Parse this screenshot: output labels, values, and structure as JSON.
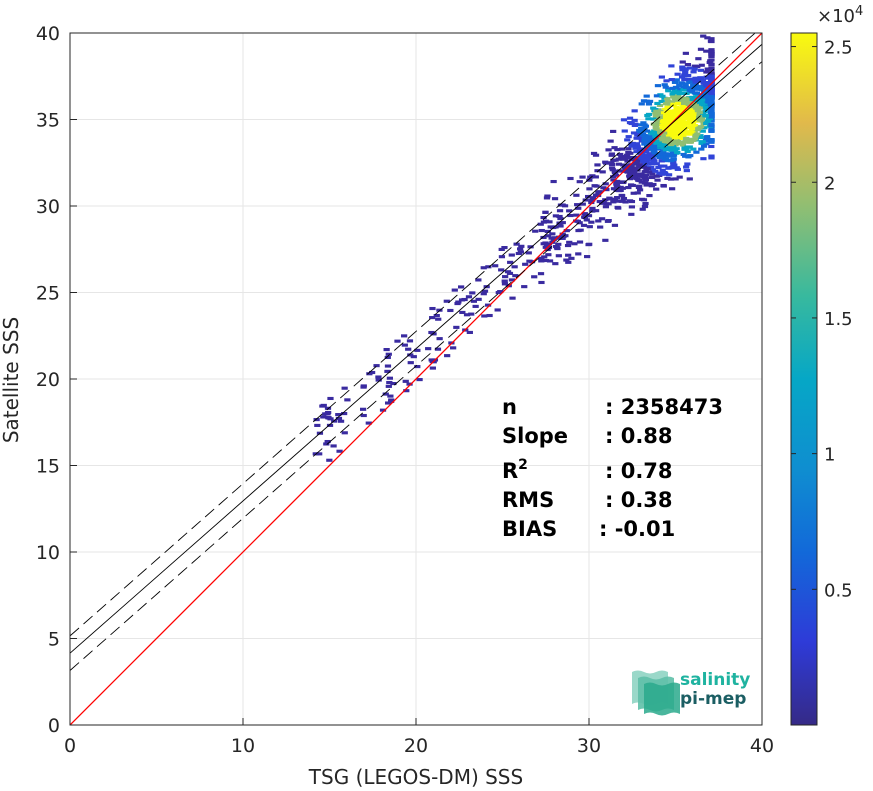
{
  "chart_data": {
    "type": "heatmap",
    "title": "",
    "xlabel": "TSG (LEGOS-DM) SSS",
    "ylabel": "Satellite SSS",
    "xlim": [
      0,
      40
    ],
    "ylim": [
      0,
      40
    ],
    "xticks": [
      "0",
      "10",
      "20",
      "30",
      "40"
    ],
    "yticks": [
      "0",
      "5",
      "10",
      "15",
      "20",
      "25",
      "30",
      "35",
      "40"
    ],
    "grid": true,
    "colorbar": {
      "range": [
        0,
        2.55
      ],
      "ticks": [
        "0.5",
        "1",
        "1.5",
        "2",
        "2.5"
      ],
      "multiplier": "×10",
      "exponent": "4",
      "colormap": "parula"
    },
    "lines": [
      {
        "name": "1:1",
        "slope": 1.0,
        "intercept": 0.0,
        "style": "solid",
        "color": "#ff0000"
      },
      {
        "name": "fit",
        "slope": 0.88,
        "intercept": 4.15,
        "style": "solid",
        "color": "#000000"
      },
      {
        "name": "fit+1sd",
        "slope": 0.88,
        "intercept": 5.15,
        "style": "dashed",
        "color": "#000000"
      },
      {
        "name": "fit-1sd",
        "slope": 0.88,
        "intercept": 3.15,
        "style": "dashed",
        "color": "#000000"
      }
    ],
    "density_core": {
      "x": 35.0,
      "y": 35.0
    },
    "stats": [
      {
        "label": "n",
        "value": ": 2358473"
      },
      {
        "label": "Slope",
        "value": ": 0.88"
      },
      {
        "label": "R",
        "sup": "2",
        "value": ": 0.78"
      },
      {
        "label": "RMS",
        "value": ": 0.38"
      },
      {
        "label": "BIAS",
        "value": ": -0.01"
      }
    ]
  },
  "logo": {
    "line1": "salinity",
    "line2": "pi-mep",
    "color1": "#1fb3a0",
    "color2": "#1b5e63"
  },
  "colors": {
    "one_to_one": "#ff0000",
    "fit": "#000000",
    "grid": "#e6e6e6"
  }
}
